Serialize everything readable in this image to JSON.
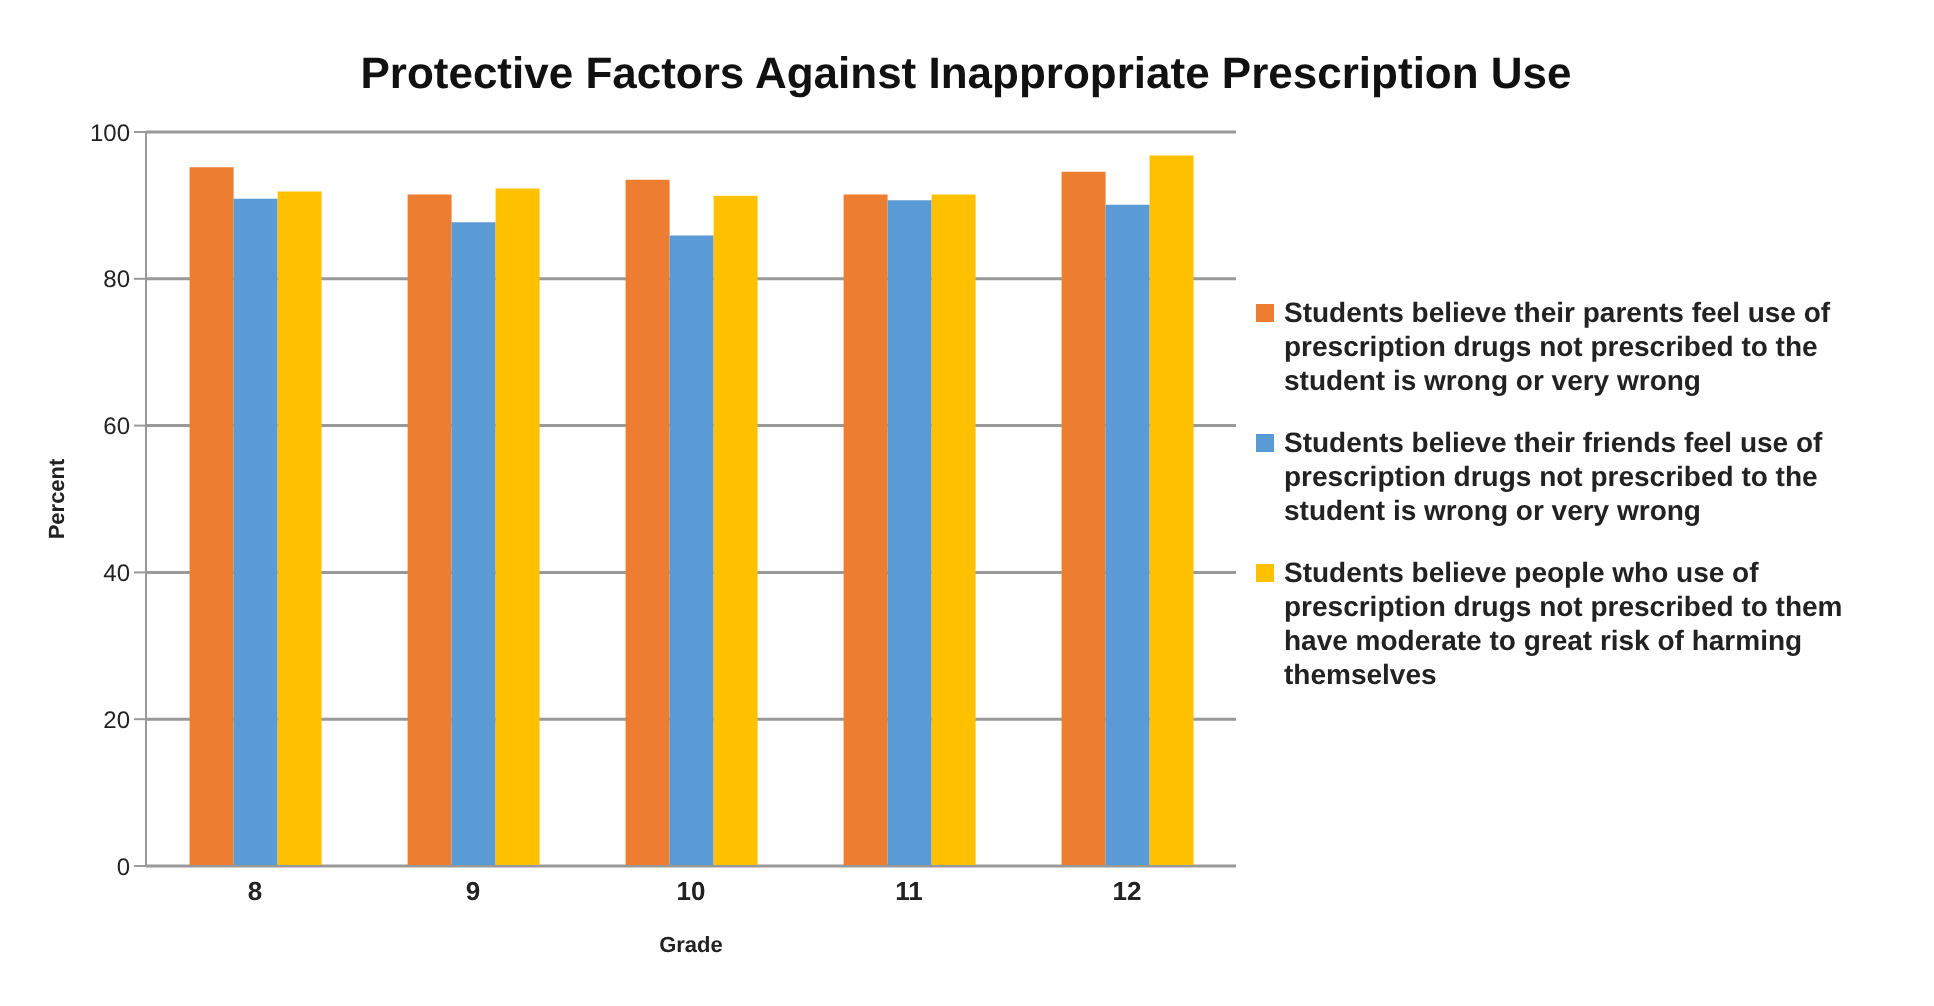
{
  "chart_data": {
    "type": "bar",
    "title": "Protective Factors Against Inappropriate Prescription Use",
    "xlabel": "Grade",
    "ylabel": "Percent",
    "categories": [
      "8",
      "9",
      "10",
      "11",
      "12"
    ],
    "series": [
      {
        "name": "Students believe their parents feel use of prescription drugs not prescribed to the student is wrong or very wrong",
        "color": "#ed7d31",
        "values": [
          95.2,
          91.5,
          93.5,
          91.5,
          94.6
        ]
      },
      {
        "name": "Students believe their friends feel use of prescription drugs not prescribed to the student is wrong or very wrong",
        "color": "#5b9bd5",
        "values": [
          90.9,
          87.7,
          85.9,
          90.7,
          90.1
        ]
      },
      {
        "name": "Students believe people who use of prescription drugs not prescribed to them have moderate to great risk of harming themselves",
        "color": "#ffc000",
        "values": [
          91.9,
          92.3,
          91.3,
          91.5,
          96.8
        ]
      }
    ],
    "ylim": [
      0,
      100
    ],
    "yticks": [
      0,
      20,
      40,
      60,
      80,
      100
    ],
    "grid": "y",
    "legend": "right"
  }
}
